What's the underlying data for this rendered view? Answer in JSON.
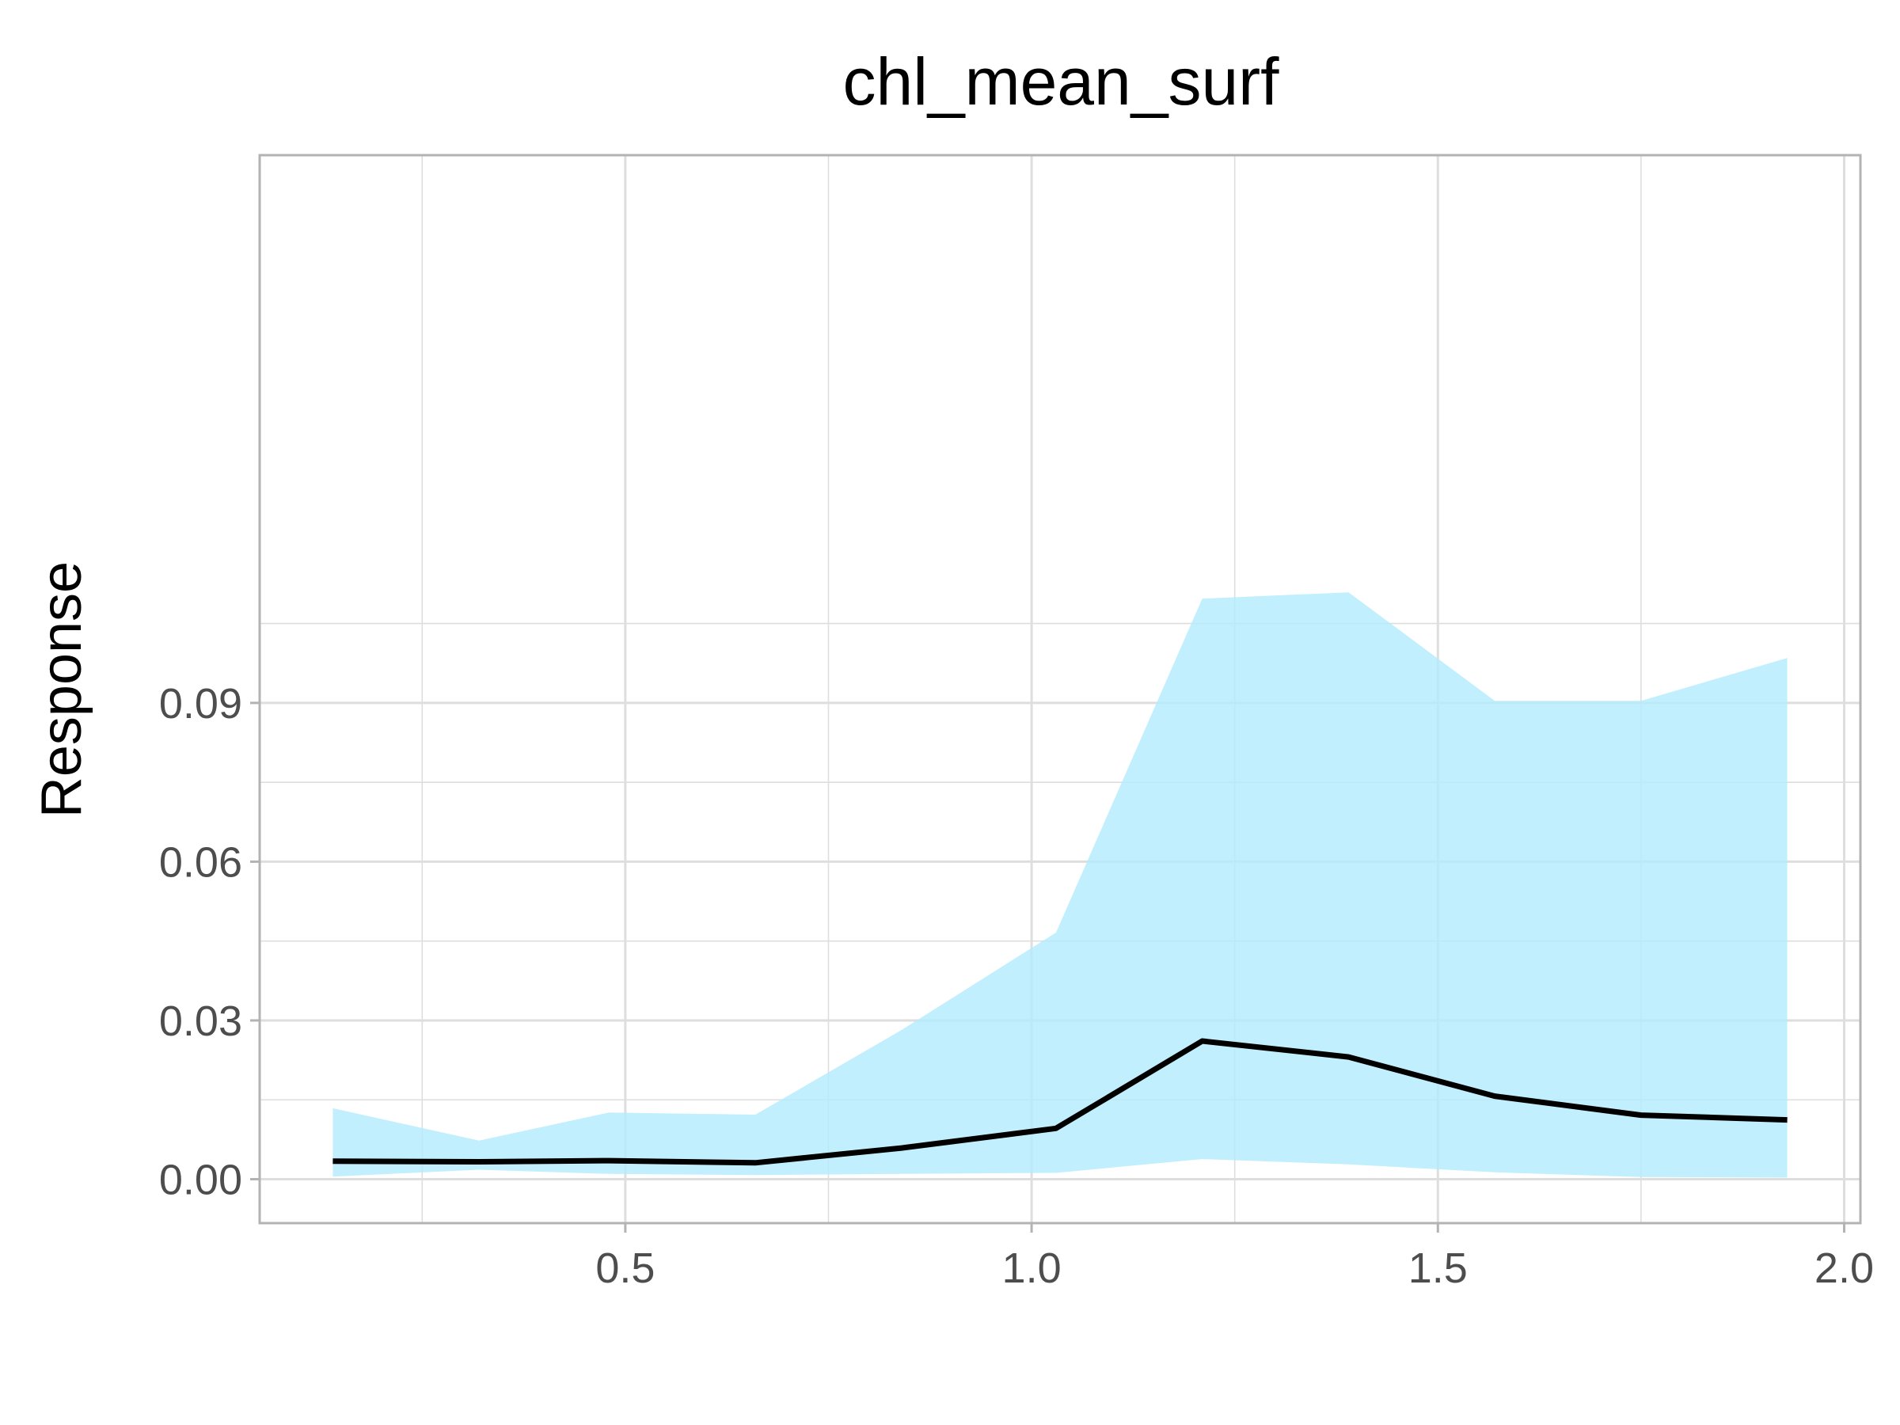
{
  "chart_data": {
    "type": "line",
    "title": "chl_mean_surf",
    "xlabel": "",
    "ylabel": "Response",
    "xlim": [
      0.05,
      2.02
    ],
    "ylim": [
      -0.0083,
      0.1935
    ],
    "x_ticks": [
      0.5,
      1.0,
      1.5,
      2.0
    ],
    "x_tick_labels": [
      "0.5",
      "1.0",
      "1.5",
      "2.0"
    ],
    "y_ticks": [
      0.0,
      0.03,
      0.06,
      0.09
    ],
    "y_tick_labels": [
      "0.00",
      "0.03",
      "0.06",
      "0.09"
    ],
    "grid": true,
    "legend": "none",
    "x": [
      0.14,
      0.32,
      0.48,
      0.66,
      0.84,
      1.03,
      1.21,
      1.39,
      1.57,
      1.75,
      1.93
    ],
    "series": [
      {
        "values": [
          0.0034,
          0.0033,
          0.0035,
          0.0031,
          0.0059,
          0.0096,
          0.0261,
          0.0231,
          0.0157,
          0.0121,
          0.0112
        ],
        "lower": [
          0.0005,
          0.0018,
          0.001,
          0.0008,
          0.001,
          0.0012,
          0.0038,
          0.0028,
          0.0013,
          0.0004,
          0.0003
        ],
        "upper": [
          0.0134,
          0.0073,
          0.0126,
          0.0122,
          0.0282,
          0.0466,
          0.1097,
          0.1109,
          0.0904,
          0.0904,
          0.0985
        ]
      }
    ],
    "colors": {
      "band": "#b3ebfc",
      "line": "#000000",
      "panel_border": "#b3b3b3",
      "grid": "#dedede",
      "tick_text": "#4d4d4d"
    }
  }
}
